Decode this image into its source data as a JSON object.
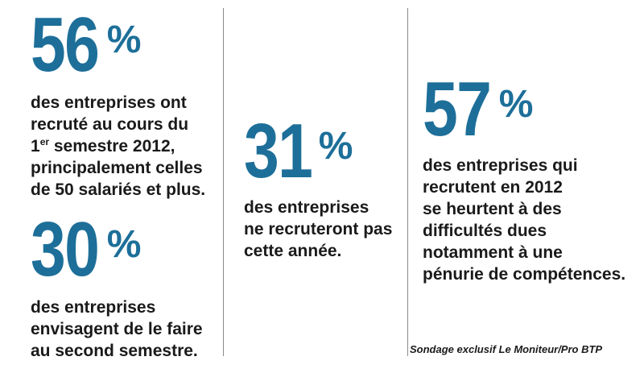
{
  "stats": [
    {
      "value": "56",
      "percent": "%",
      "lines": [
        "des entreprises ont",
        "recruté au cours du",
        "1",
        "er",
        " semestre 2012,",
        "principalement celles",
        "de 50 salariés et plus."
      ]
    },
    {
      "value": "30",
      "percent": "%",
      "lines": [
        "des entreprises",
        "envisagent de le faire",
        "au second semestre."
      ]
    },
    {
      "value": "31",
      "percent": "%",
      "lines": [
        "des entreprises",
        "ne recruteront pas",
        "cette année."
      ]
    },
    {
      "value": "57",
      "percent": "%",
      "lines": [
        "des entreprises qui",
        "recrutent en 2012",
        "se heurtent à des",
        "difficultés dues",
        "notamment à une",
        "pénurie de compétences."
      ]
    }
  ],
  "source": "Sondage exclusif Le Moniteur/Pro BTP",
  "colors": {
    "accent": "#1d6f99",
    "text": "#1a1a1a",
    "divider": "#8a8a8a"
  }
}
